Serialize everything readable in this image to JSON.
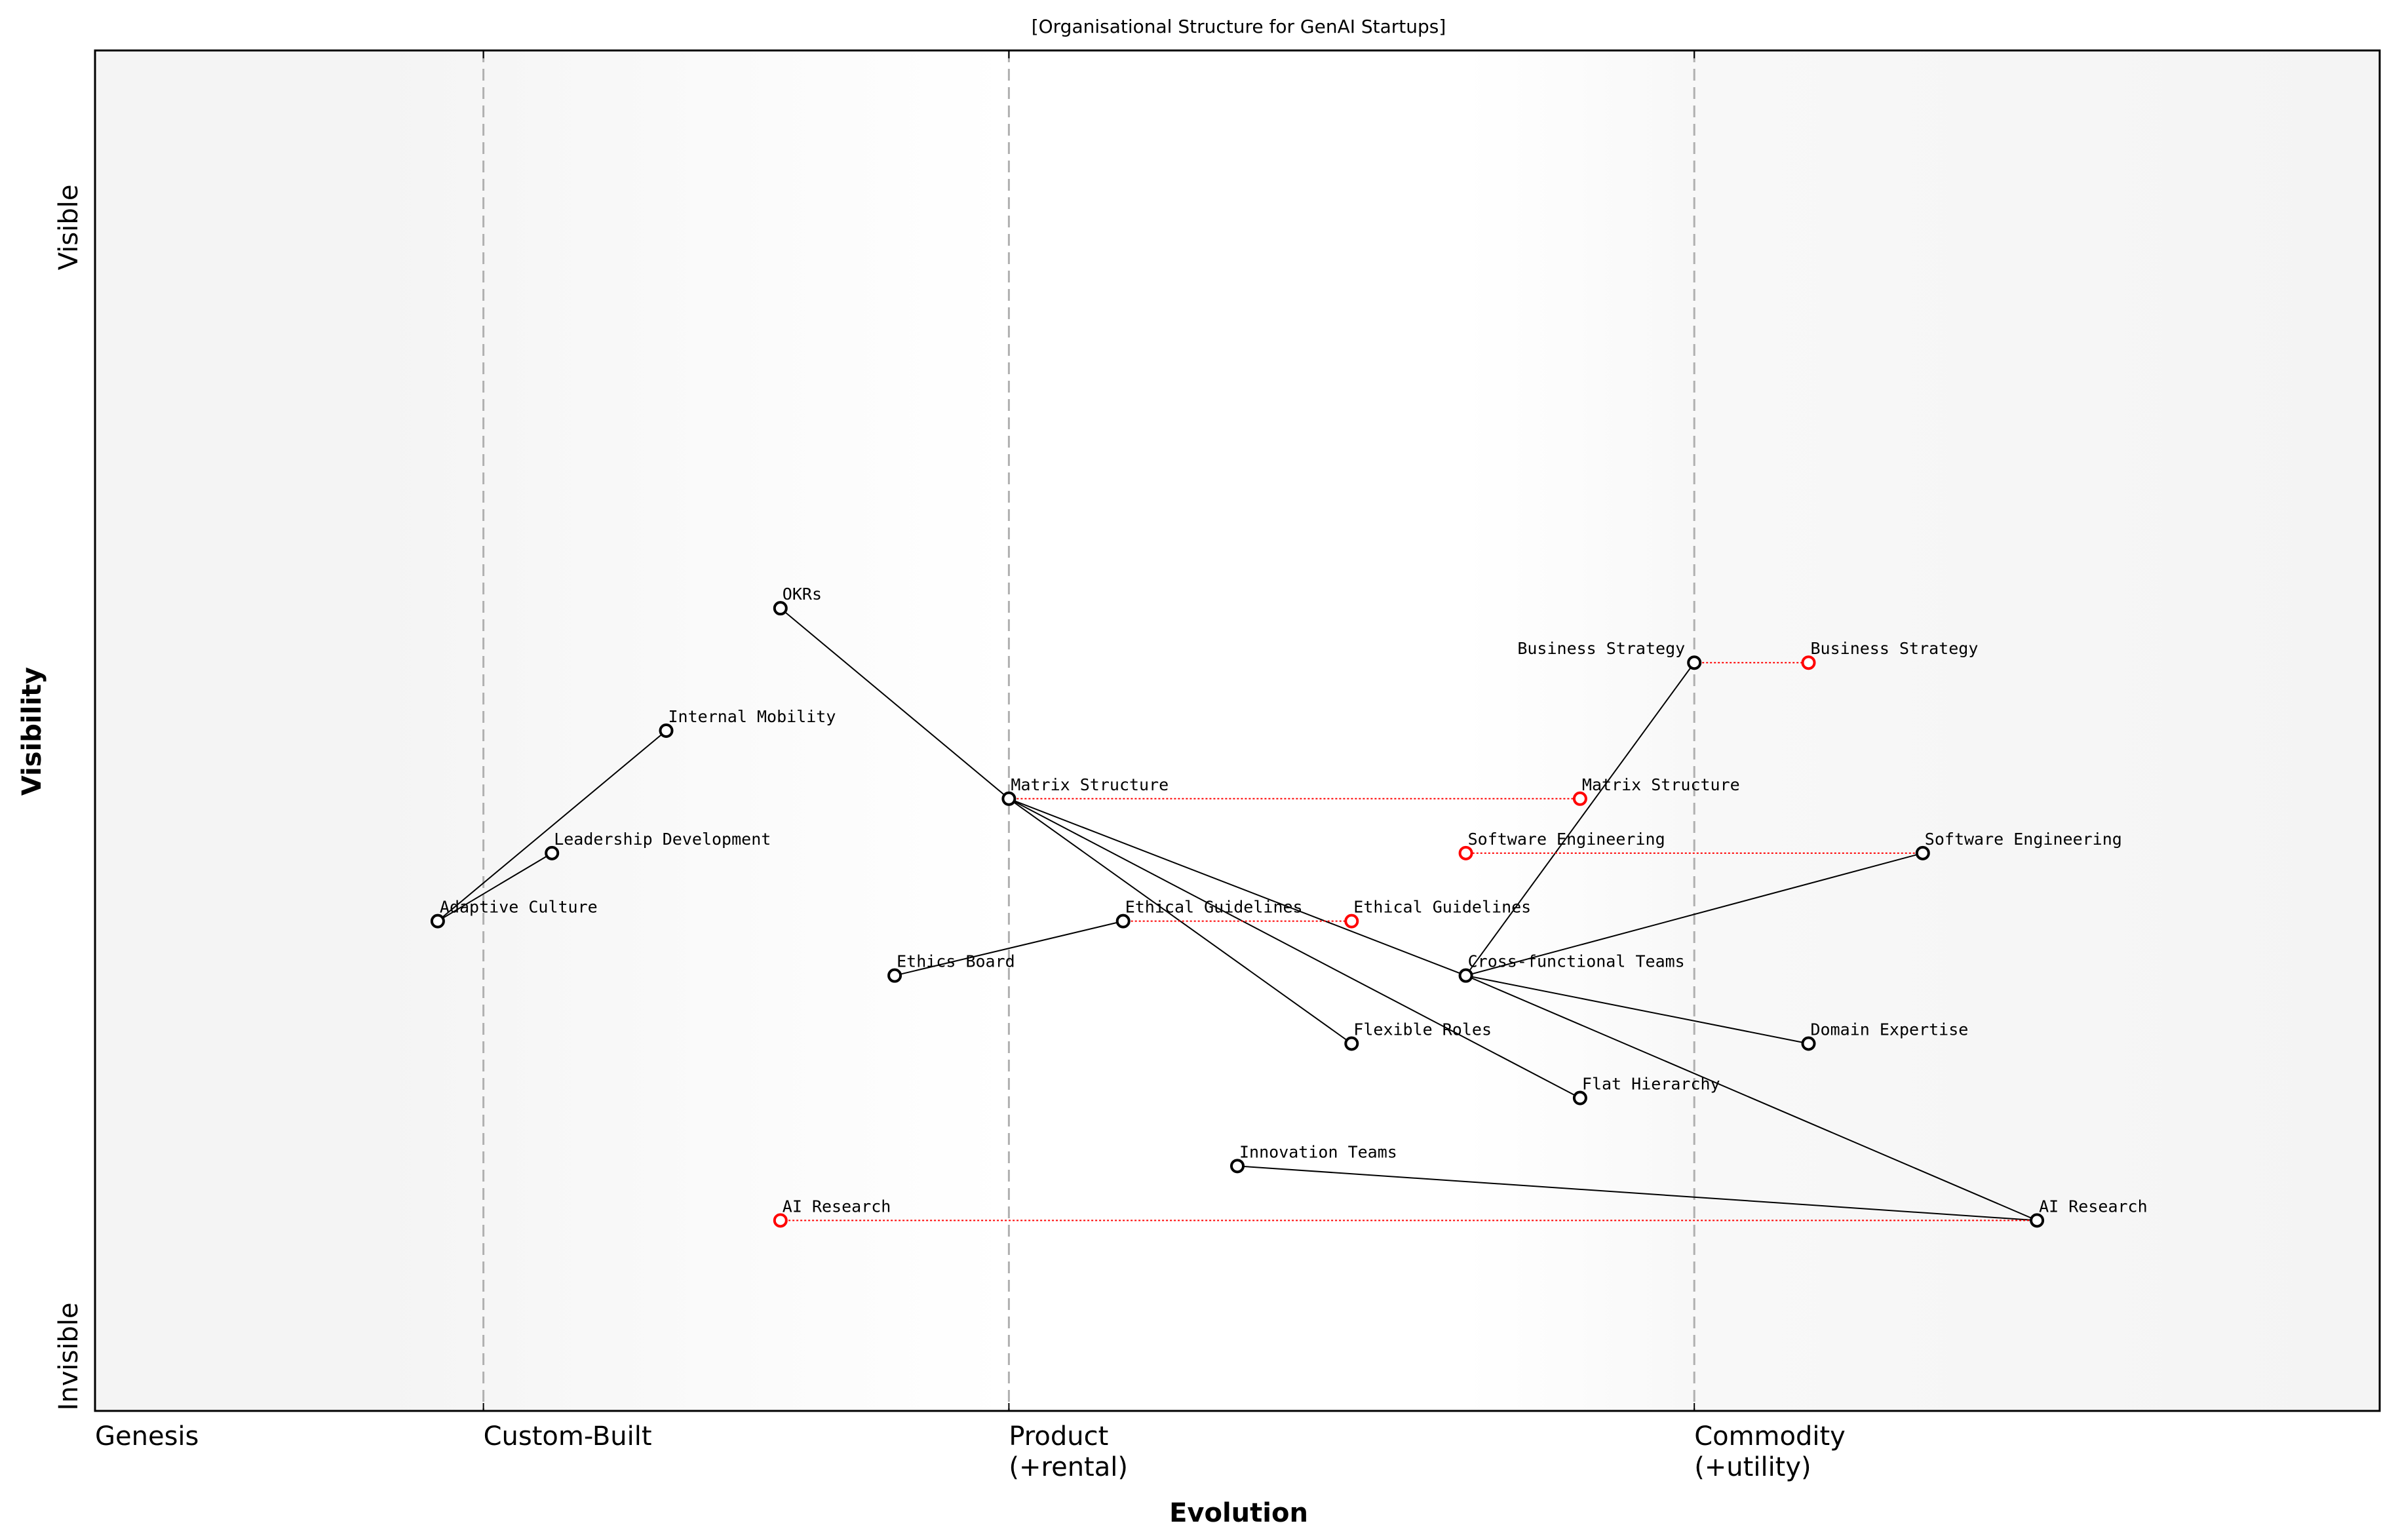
{
  "chart_data": {
    "type": "wardley-map",
    "title": "[Organisational Structure for GenAI Startups]",
    "xlabel": "Evolution",
    "ylabel": "Visibility",
    "xlim": [
      0,
      1
    ],
    "ylim": [
      0,
      1
    ],
    "y_ticks": [
      {
        "label": "Invisible",
        "value": 0.04
      },
      {
        "label": "Visible",
        "value": 0.87
      }
    ],
    "stages": [
      {
        "label": "Genesis",
        "value": 0.0,
        "line": false
      },
      {
        "label": "Custom-Built",
        "value": 0.17,
        "line": true
      },
      {
        "label": "Product\n(+rental)",
        "line1": "Product",
        "line2": "(+rental)",
        "value": 0.4,
        "line": true
      },
      {
        "label": "Commodity\n(+utility)",
        "line1": "Commodity",
        "line2": "(+utility)",
        "value": 0.7,
        "line": true
      }
    ],
    "components": [
      {
        "name": "OKRs",
        "evolution": 0.3,
        "visibility": 0.59
      },
      {
        "name": "Internal Mobility",
        "evolution": 0.25,
        "visibility": 0.5
      },
      {
        "name": "Leadership Development",
        "evolution": 0.2,
        "visibility": 0.41
      },
      {
        "name": "Adaptive Culture",
        "evolution": 0.15,
        "visibility": 0.36
      },
      {
        "name": "Matrix Structure",
        "evolution": 0.4,
        "visibility": 0.45
      },
      {
        "name": "Ethical Guidelines",
        "evolution": 0.45,
        "visibility": 0.36
      },
      {
        "name": "Ethics Board",
        "evolution": 0.35,
        "visibility": 0.32
      },
      {
        "name": "Flexible Roles",
        "evolution": 0.55,
        "visibility": 0.27
      },
      {
        "name": "Flat Hierarchy",
        "evolution": 0.65,
        "visibility": 0.23
      },
      {
        "name": "Innovation Teams",
        "evolution": 0.5,
        "visibility": 0.18
      },
      {
        "name": "AI Research",
        "evolution": 0.85,
        "visibility": 0.14
      },
      {
        "name": "Cross-functional Teams",
        "evolution": 0.6,
        "visibility": 0.32
      },
      {
        "name": "Domain Expertise",
        "evolution": 0.75,
        "visibility": 0.27
      },
      {
        "name": "Software Engineering",
        "evolution": 0.8,
        "visibility": 0.41
      },
      {
        "name": "Business Strategy",
        "evolution": 0.7,
        "visibility": 0.55
      }
    ],
    "evolved": [
      {
        "name": "Business Strategy",
        "evolution": 0.75
      },
      {
        "name": "Matrix Structure",
        "evolution": 0.65
      },
      {
        "name": "Software Engineering",
        "evolution": 0.6
      },
      {
        "name": "Ethical Guidelines",
        "evolution": 0.55
      },
      {
        "name": "AI Research",
        "evolution": 0.3
      }
    ],
    "links": [
      [
        "Adaptive Culture",
        "Internal Mobility"
      ],
      [
        "Adaptive Culture",
        "Leadership Development"
      ],
      [
        "OKRs",
        "Matrix Structure"
      ],
      [
        "Matrix Structure",
        "Flexible Roles"
      ],
      [
        "Matrix Structure",
        "Flat Hierarchy"
      ],
      [
        "Matrix Structure",
        "Cross-functional Teams"
      ],
      [
        "Ethics Board",
        "Ethical Guidelines"
      ],
      [
        "Cross-functional Teams",
        "Business Strategy"
      ],
      [
        "Cross-functional Teams",
        "Software Engineering"
      ],
      [
        "Cross-functional Teams",
        "Domain Expertise"
      ],
      [
        "Cross-functional Teams",
        "AI Research"
      ],
      [
        "Innovation Teams",
        "AI Research"
      ]
    ],
    "colors": {
      "component": "#000000",
      "evolved": "#ff0000",
      "stage_line": "#b0b0b0",
      "background_edge": "#f4f4f4",
      "background_center": "#ffffff"
    }
  }
}
